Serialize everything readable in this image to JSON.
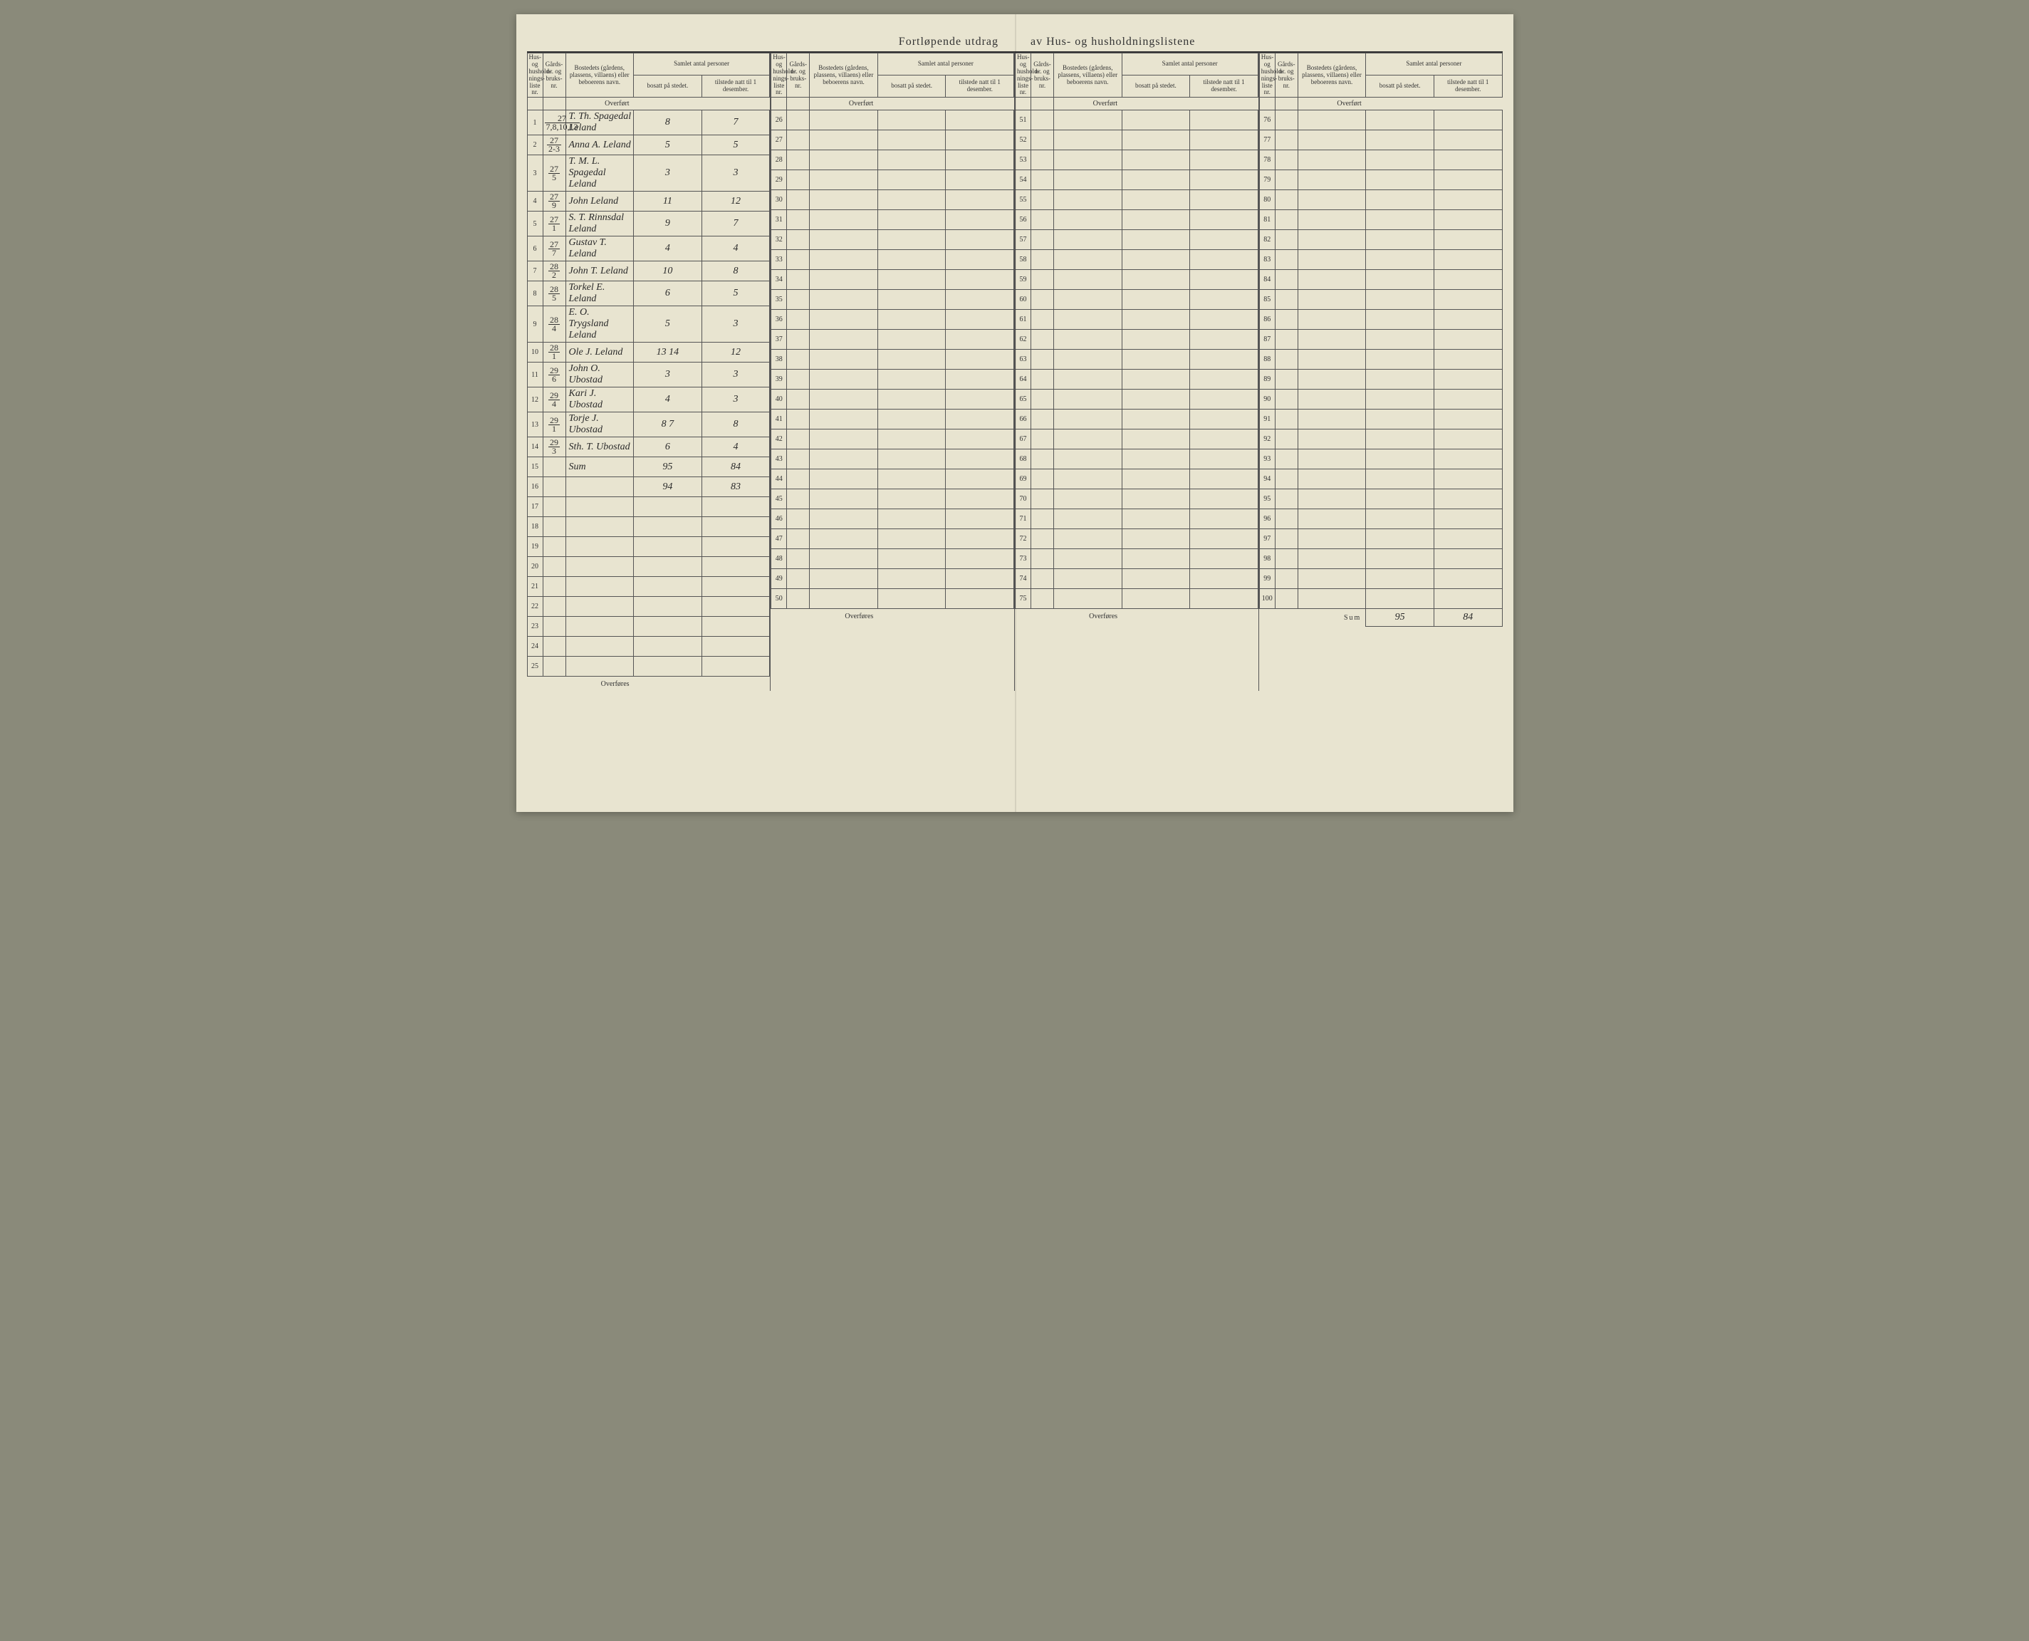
{
  "document": {
    "title_left": "Fortløpende utdrag",
    "title_right": "av Hus- og husholdningslistene",
    "background_color": "#e8e4d0",
    "ink_color": "#2a2a2a",
    "rule_color": "#555555"
  },
  "headers": {
    "col_liste": "Hus- og hushold-nings-liste nr.",
    "col_gnr": "Gårds-nr. og bruks-nr.",
    "col_bosted": "Bostedets (gårdens, plassens, villaens) eller beboerens navn.",
    "col_group": "Samlet antal personer",
    "col_bosatt": "bosatt på stedet.",
    "col_tilstede": "tilstede natt til 1 desember.",
    "overfort": "Overført",
    "overfores": "Overføres",
    "sum": "Sum"
  },
  "panels": [
    {
      "start": 1,
      "end": 25,
      "overfort_at_top": true,
      "footer": "overfores",
      "rows": [
        {
          "n": 1,
          "gnr_top": "27",
          "gnr_bot": "7,8,10,13",
          "name": "T. Th. Spagedal Leland",
          "bosatt": "8",
          "tilstede": "7"
        },
        {
          "n": 2,
          "gnr_top": "27",
          "gnr_bot": "2-3",
          "name": "Anna A. Leland",
          "bosatt": "5",
          "tilstede": "5"
        },
        {
          "n": 3,
          "gnr_top": "27",
          "gnr_bot": "5",
          "name": "T. M. L. Spagedal Leland",
          "bosatt": "3",
          "tilstede": "3"
        },
        {
          "n": 4,
          "gnr_top": "27",
          "gnr_bot": "9",
          "name": "John Leland",
          "bosatt": "11",
          "tilstede": "12"
        },
        {
          "n": 5,
          "gnr_top": "27",
          "gnr_bot": "1",
          "name": "S. T. Rinnsdal Leland",
          "bosatt": "9",
          "tilstede": "7"
        },
        {
          "n": 6,
          "gnr_top": "27",
          "gnr_bot": "7",
          "name": "Gustav T. Leland",
          "bosatt": "4",
          "tilstede": "4"
        },
        {
          "n": 7,
          "gnr_top": "28",
          "gnr_bot": "2",
          "name": "John T. Leland",
          "bosatt": "10",
          "tilstede": "8"
        },
        {
          "n": 8,
          "gnr_top": "28",
          "gnr_bot": "5",
          "name": "Torkel E. Leland",
          "bosatt": "6",
          "tilstede": "5"
        },
        {
          "n": 9,
          "gnr_top": "28",
          "gnr_bot": "4",
          "name": "E. O. Trygsland Leland",
          "bosatt": "5",
          "tilstede": "3"
        },
        {
          "n": 10,
          "gnr_top": "28",
          "gnr_bot": "1",
          "name": "Ole J. Leland",
          "bosatt": "13 14",
          "tilstede": "12"
        },
        {
          "n": 11,
          "gnr_top": "29",
          "gnr_bot": "6",
          "name": "John O. Ubostad",
          "bosatt": "3",
          "tilstede": "3"
        },
        {
          "n": 12,
          "gnr_top": "29",
          "gnr_bot": "4",
          "name": "Kari J. Ubostad",
          "bosatt": "4",
          "tilstede": "3"
        },
        {
          "n": 13,
          "gnr_top": "29",
          "gnr_bot": "1",
          "name": "Torje J. Ubostad",
          "bosatt": "8 7",
          "tilstede": "8"
        },
        {
          "n": 14,
          "gnr_top": "29",
          "gnr_bot": "3",
          "name": "Sth. T. Ubostad",
          "bosatt": "6",
          "tilstede": "4"
        },
        {
          "n": 15,
          "gnr_top": "",
          "gnr_bot": "",
          "name": "Sum",
          "bosatt": "95",
          "tilstede": "84"
        },
        {
          "n": 16,
          "gnr_top": "",
          "gnr_bot": "",
          "name": "",
          "bosatt": "94",
          "tilstede": "83"
        },
        {
          "n": 17
        },
        {
          "n": 18
        },
        {
          "n": 19
        },
        {
          "n": 20
        },
        {
          "n": 21
        },
        {
          "n": 22
        },
        {
          "n": 23
        },
        {
          "n": 24
        },
        {
          "n": 25
        }
      ]
    },
    {
      "start": 26,
      "end": 50,
      "overfort_at_top": true,
      "footer": "overfores",
      "rows": [
        {
          "n": 26
        },
        {
          "n": 27
        },
        {
          "n": 28
        },
        {
          "n": 29
        },
        {
          "n": 30
        },
        {
          "n": 31
        },
        {
          "n": 32
        },
        {
          "n": 33
        },
        {
          "n": 34
        },
        {
          "n": 35
        },
        {
          "n": 36
        },
        {
          "n": 37
        },
        {
          "n": 38
        },
        {
          "n": 39
        },
        {
          "n": 40
        },
        {
          "n": 41
        },
        {
          "n": 42
        },
        {
          "n": 43
        },
        {
          "n": 44
        },
        {
          "n": 45
        },
        {
          "n": 46
        },
        {
          "n": 47
        },
        {
          "n": 48
        },
        {
          "n": 49
        },
        {
          "n": 50
        }
      ]
    },
    {
      "start": 51,
      "end": 75,
      "overfort_at_top": true,
      "footer": "overfores",
      "rows": [
        {
          "n": 51
        },
        {
          "n": 52
        },
        {
          "n": 53
        },
        {
          "n": 54
        },
        {
          "n": 55
        },
        {
          "n": 56
        },
        {
          "n": 57
        },
        {
          "n": 58
        },
        {
          "n": 59
        },
        {
          "n": 60
        },
        {
          "n": 61
        },
        {
          "n": 62
        },
        {
          "n": 63
        },
        {
          "n": 64
        },
        {
          "n": 65
        },
        {
          "n": 66
        },
        {
          "n": 67
        },
        {
          "n": 68
        },
        {
          "n": 69
        },
        {
          "n": 70
        },
        {
          "n": 71
        },
        {
          "n": 72
        },
        {
          "n": 73
        },
        {
          "n": 74
        },
        {
          "n": 75
        }
      ]
    },
    {
      "start": 76,
      "end": 100,
      "overfort_at_top": true,
      "footer": "sum",
      "sum_bosatt": "95",
      "sum_tilstede": "84",
      "rows": [
        {
          "n": 76
        },
        {
          "n": 77
        },
        {
          "n": 78
        },
        {
          "n": 79
        },
        {
          "n": 80
        },
        {
          "n": 81
        },
        {
          "n": 82
        },
        {
          "n": 83
        },
        {
          "n": 84
        },
        {
          "n": 85
        },
        {
          "n": 86
        },
        {
          "n": 87
        },
        {
          "n": 88
        },
        {
          "n": 89
        },
        {
          "n": 90
        },
        {
          "n": 91
        },
        {
          "n": 92
        },
        {
          "n": 93
        },
        {
          "n": 94
        },
        {
          "n": 95
        },
        {
          "n": 96
        },
        {
          "n": 97
        },
        {
          "n": 98
        },
        {
          "n": 99
        },
        {
          "n": 100
        }
      ]
    }
  ]
}
